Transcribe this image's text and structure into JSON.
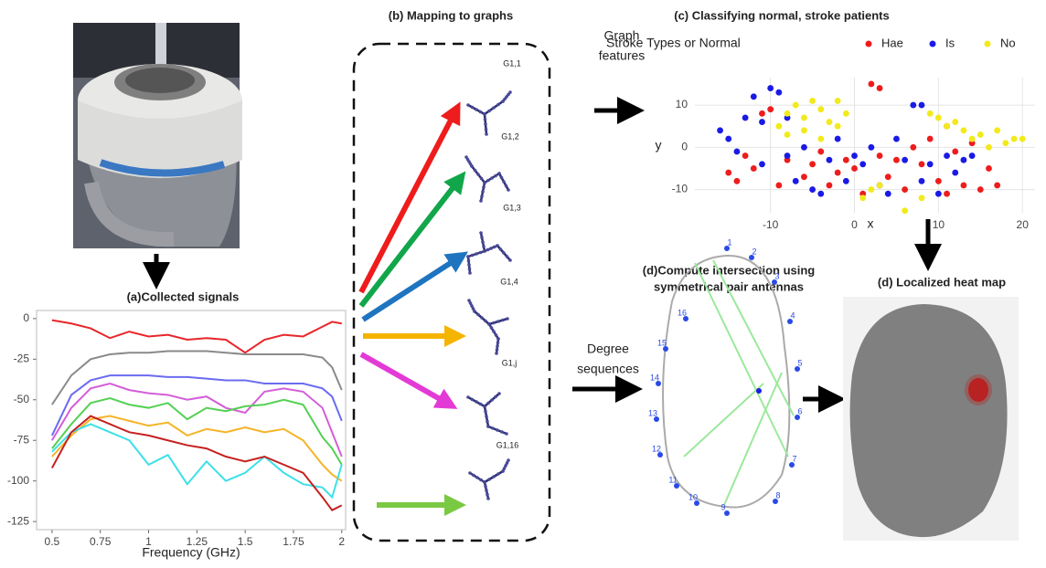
{
  "titles": {
    "b": "(b) Mapping to graphs",
    "d_left": [
      "(d)Compute intersection using",
      "symmetrical pair antennas"
    ],
    "d_right": "(d) Localized heat map"
  },
  "arrow_labels": {
    "graph_features": [
      "Graph",
      "features"
    ],
    "degree_sequences": [
      "Degree",
      "sequences"
    ]
  },
  "graph_labels": [
    "G1,1",
    "G1,2",
    "G1,3",
    "G1,4",
    "G1,j",
    "G1,16"
  ],
  "antenna_labels": [
    "1",
    "2",
    "3",
    "4",
    "5",
    "6",
    "7",
    "8",
    "9",
    "10",
    "11",
    "12",
    "13",
    "14",
    "15",
    "16"
  ],
  "chart_data": [
    {
      "type": "line",
      "title": "(a)Collected signals",
      "x_label": "Frequency (GHz)",
      "x": [
        0.5,
        0.6,
        0.7,
        0.8,
        0.9,
        1.0,
        1.1,
        1.2,
        1.3,
        1.4,
        1.5,
        1.6,
        1.7,
        1.8,
        1.9,
        1.95,
        2.0
      ],
      "series": [
        {
          "color": "#e8262b",
          "values": [
            -1,
            -3,
            -6,
            -12,
            -8,
            -11,
            -10,
            -13,
            -12,
            -13,
            -21,
            -13,
            -10,
            -11,
            -5,
            -2,
            -3
          ]
        },
        {
          "color": "#8a8a8a",
          "values": [
            -53,
            -35,
            -25,
            -22,
            -21,
            -21,
            -20,
            -20,
            -20,
            -21,
            -22,
            -22,
            -22,
            -22,
            -24,
            -30,
            -44
          ]
        },
        {
          "color": "#6b6bf0",
          "values": [
            -72,
            -47,
            -38,
            -35,
            -35,
            -35,
            -36,
            -36,
            -37,
            -38,
            -38,
            -40,
            -40,
            -40,
            -43,
            -48,
            -63
          ]
        },
        {
          "color": "#d35ed8",
          "values": [
            -75,
            -55,
            -43,
            -40,
            -44,
            -46,
            -47,
            -50,
            -48,
            -55,
            -58,
            -45,
            -43,
            -45,
            -55,
            -70,
            -85
          ]
        },
        {
          "color": "#55d055",
          "values": [
            -80,
            -65,
            -52,
            -49,
            -53,
            -55,
            -52,
            -62,
            -55,
            -57,
            -54,
            -53,
            -50,
            -53,
            -73,
            -80,
            -90
          ]
        },
        {
          "color": "#f5b428",
          "values": [
            -85,
            -72,
            -62,
            -60,
            -63,
            -66,
            -64,
            -72,
            -68,
            -70,
            -67,
            -70,
            -68,
            -75,
            -90,
            -96,
            -100
          ]
        },
        {
          "color": "#3de0e8",
          "values": [
            -82,
            -70,
            -65,
            -70,
            -75,
            -90,
            -84,
            -102,
            -88,
            -100,
            -95,
            -85,
            -95,
            -102,
            -104,
            -110,
            -90
          ]
        },
        {
          "color": "#c62020",
          "values": [
            -92,
            -70,
            -60,
            -65,
            -70,
            -72,
            -75,
            -78,
            -80,
            -85,
            -88,
            -85,
            -90,
            -95,
            -110,
            -118,
            -115
          ]
        }
      ],
      "xlim": [
        0.42,
        2.02
      ],
      "ylim": [
        -130,
        5
      ],
      "xticks": [
        0.5,
        0.75,
        1,
        1.25,
        1.5,
        1.75,
        2
      ],
      "yticks": [
        0,
        -25,
        -50,
        -75,
        -100,
        -125
      ],
      "grid": false
    },
    {
      "type": "scatter",
      "title": "(c) Classifying normal, stroke patients",
      "legend_title": "Stroke Types or Normal",
      "x_label": "x",
      "y_label": "y",
      "series": [
        {
          "name": "Hae",
          "color": "#ee1c1c",
          "x": [
            -15,
            -14,
            -13,
            -12,
            -11,
            -10,
            -8,
            -6,
            -5,
            -3,
            -2,
            -1,
            0,
            1,
            2,
            3,
            3,
            4,
            5,
            6,
            7,
            8,
            9,
            10,
            11,
            12,
            13,
            14,
            15,
            16,
            17,
            -9,
            -4,
            11
          ],
          "values": [
            -6,
            -8,
            -2,
            -5,
            8,
            9,
            -3,
            -7,
            -4,
            -9,
            -6,
            -3,
            -5,
            -11,
            15,
            14,
            -2,
            -7,
            -3,
            -10,
            0,
            -4,
            2,
            -8,
            -11,
            -1,
            -9,
            1,
            -10,
            -5,
            -9,
            -9,
            -1,
            5
          ]
        },
        {
          "name": "Is",
          "color": "#1a1ae6",
          "x": [
            -16,
            -15,
            -14,
            -13,
            -12,
            -11,
            -10,
            -9,
            -8,
            -7,
            -6,
            -5,
            -4,
            -3,
            -2,
            -1,
            0,
            1,
            2,
            3,
            4,
            6,
            7,
            8,
            9,
            10,
            11,
            12,
            13,
            5,
            -8,
            -11,
            14,
            8
          ],
          "values": [
            4,
            2,
            -1,
            7,
            12,
            6,
            14,
            13,
            -2,
            -8,
            0,
            -10,
            -11,
            -3,
            2,
            -8,
            -2,
            -4,
            0,
            -9,
            -11,
            -3,
            10,
            -8,
            -4,
            -11,
            -2,
            -6,
            -3,
            2,
            7,
            -4,
            -2,
            10
          ]
        },
        {
          "name": "No",
          "color": "#f2ea1a",
          "x": [
            -9,
            -8,
            -7,
            -6,
            -5,
            -4,
            -3,
            -2,
            -6,
            -4,
            -1,
            1,
            2,
            3,
            9,
            10,
            11,
            12,
            13,
            14,
            15,
            16,
            17,
            18,
            19,
            20,
            -8,
            -2,
            6,
            8
          ],
          "values": [
            5,
            8,
            10,
            4,
            11,
            9,
            6,
            11,
            7,
            2,
            8,
            -12,
            -10,
            -9,
            8,
            7,
            5,
            6,
            4,
            2,
            3,
            0,
            4,
            1,
            2,
            2,
            3,
            5,
            -15,
            -12
          ]
        }
      ],
      "xlim": [
        -19,
        21.5
      ],
      "ylim": [
        -15.5,
        16.5
      ],
      "xticks": [
        -10,
        0,
        10,
        20
      ],
      "yticks": [
        -10,
        0,
        10
      ],
      "grid": true
    }
  ]
}
